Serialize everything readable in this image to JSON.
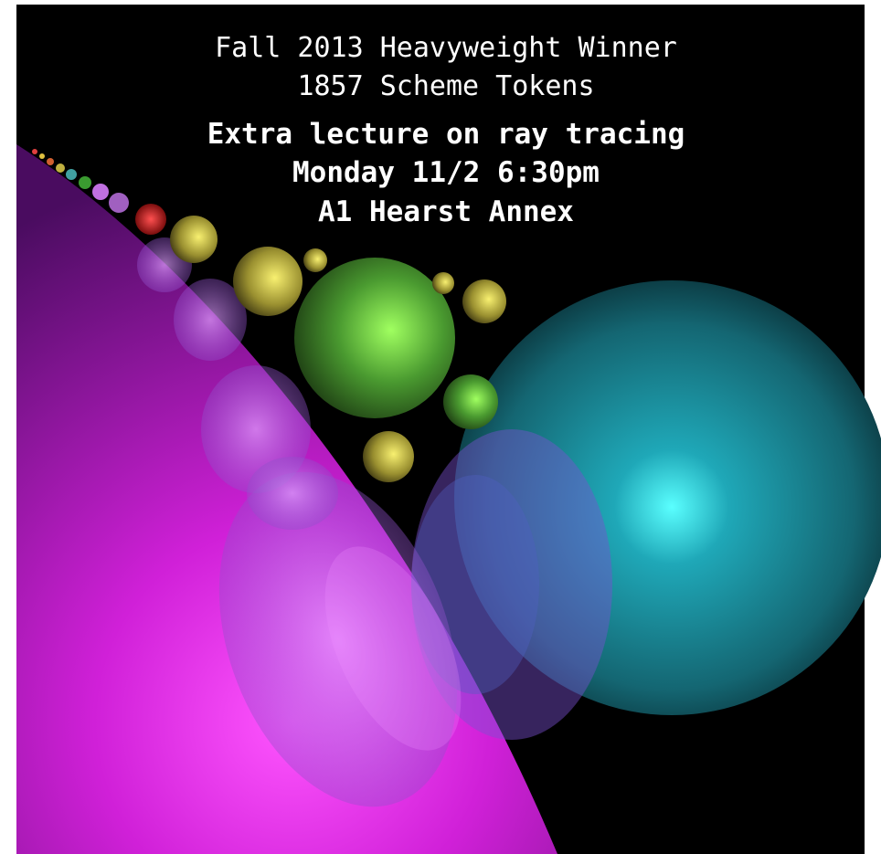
{
  "caption": {
    "lines": [
      "Fall 2013 Heavyweight Winner",
      "1857 Scheme Tokens"
    ]
  },
  "announcement": {
    "lines": [
      "Extra lecture on ray tracing",
      "Monday 11/2 6:30pm",
      "A1 Hearst Annex"
    ]
  }
}
